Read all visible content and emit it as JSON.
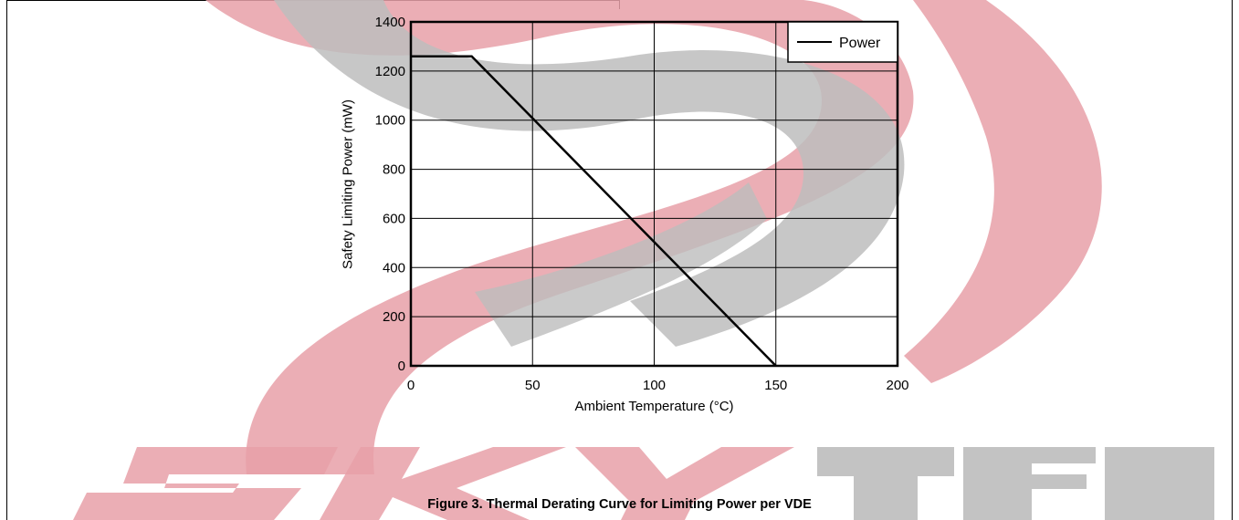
{
  "caption": "Figure 3. Thermal Derating Curve for Limiting Power per VDE",
  "watermark_text": "SKYTECH",
  "watermark_colors": {
    "red": "#e8a0a8",
    "gray": "#bdbdbd"
  },
  "chart_data": {
    "type": "line",
    "xlabel": "Ambient Temperature (°C)",
    "ylabel": "Safety Limiting Power (mW)",
    "xlim": [
      0,
      200
    ],
    "ylim": [
      0,
      1400
    ],
    "xticks": [
      0,
      50,
      100,
      150,
      200
    ],
    "yticks": [
      0,
      200,
      400,
      600,
      800,
      1000,
      1200,
      1400
    ],
    "grid": true,
    "legend": {
      "position": "top-right",
      "entries": [
        "Power"
      ]
    },
    "series": [
      {
        "name": "Power",
        "color": "#000000",
        "points": [
          [
            0,
            1260
          ],
          [
            25,
            1260
          ],
          [
            150,
            0
          ]
        ]
      }
    ]
  }
}
